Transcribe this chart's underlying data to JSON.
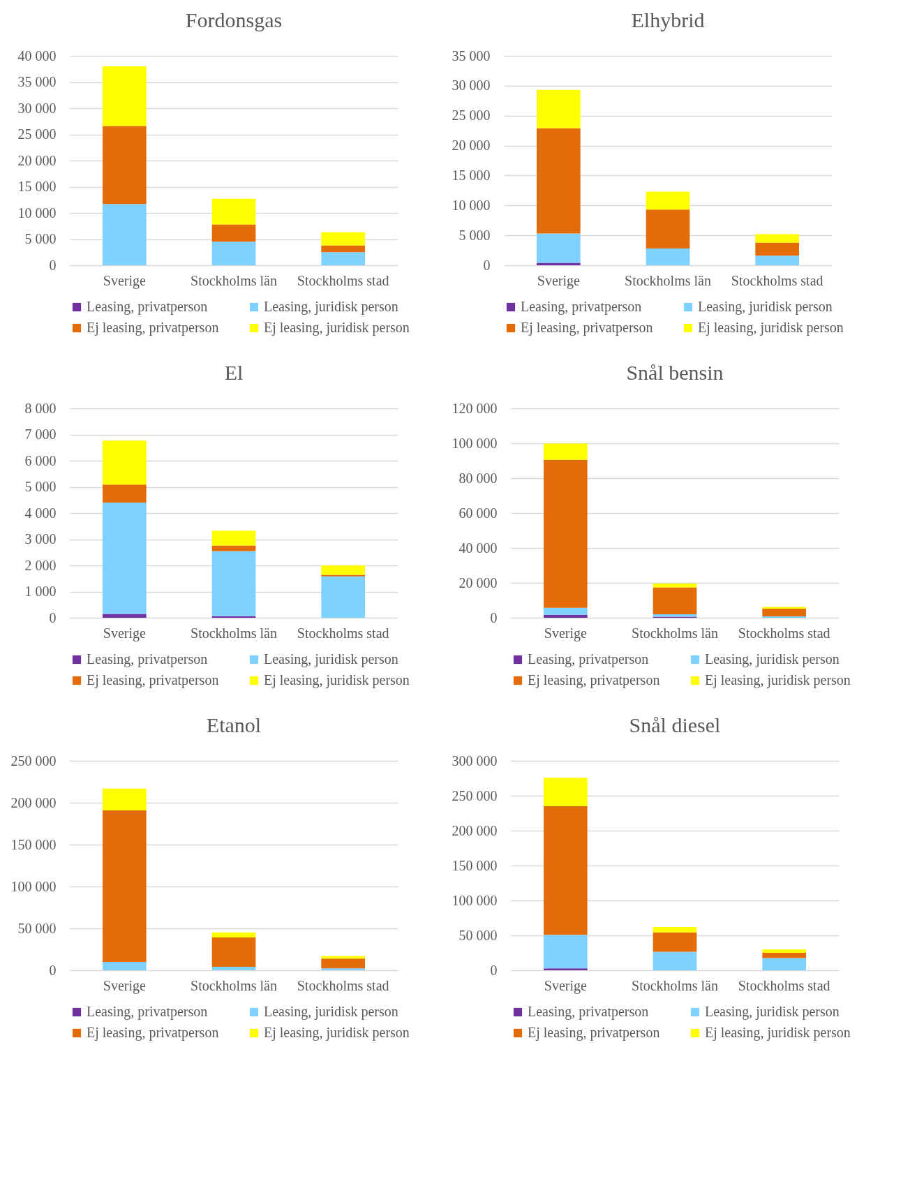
{
  "chart_data": [
    {
      "type": "bar",
      "title": "Fordonsgas",
      "stacked": true,
      "grid": "y",
      "legend": "bottom",
      "categories": [
        "Sverige",
        "Stockholms län",
        "Stockholms stad"
      ],
      "ylim": [
        0,
        40000
      ],
      "yticks": [
        0,
        {
          "value": 5000,
          "label": "5 000"
        },
        {
          "value": 10000,
          "label": "10 000"
        },
        {
          "value": 15000,
          "label": "15 000"
        },
        {
          "value": 20000,
          "label": "20 000"
        },
        {
          "value": 25000,
          "label": "25 000"
        },
        {
          "value": 30000,
          "label": "30 000"
        },
        {
          "value": 35000,
          "label": "35 000"
        },
        {
          "value": 40000,
          "label": "40 000"
        }
      ],
      "series": [
        {
          "name": "Leasing, privatperson",
          "color": "#7030a0",
          "values": [
            0,
            0,
            0
          ]
        },
        {
          "name": "Leasing, juridisk person",
          "color": "#7fd1ff",
          "values": [
            11700,
            4500,
            2500
          ]
        },
        {
          "name": "Ej leasing, privatperson",
          "color": "#e36c09",
          "values": [
            14900,
            3300,
            1300
          ]
        },
        {
          "name": "Ej leasing, juridisk person",
          "color": "#ffff00",
          "values": [
            11400,
            4900,
            2500
          ]
        }
      ]
    },
    {
      "type": "bar",
      "title": "Elhybrid",
      "stacked": true,
      "grid": "y",
      "legend": "bottom",
      "categories": [
        "Sverige",
        "Stockholms län",
        "Stockholms stad"
      ],
      "ylim": [
        0,
        35000
      ],
      "yticks": [
        0,
        {
          "value": 5000,
          "label": "5 000"
        },
        {
          "value": 10000,
          "label": "10 000"
        },
        {
          "value": 15000,
          "label": "15 000"
        },
        {
          "value": 20000,
          "label": "20 000"
        },
        {
          "value": 25000,
          "label": "25 000"
        },
        {
          "value": 30000,
          "label": "30 000"
        },
        {
          "value": 35000,
          "label": "35 000"
        }
      ],
      "series": [
        {
          "name": "Leasing, privatperson",
          "color": "#7030a0",
          "values": [
            400,
            0,
            0
          ]
        },
        {
          "name": "Leasing, juridisk person",
          "color": "#7fd1ff",
          "values": [
            4900,
            2800,
            1600
          ]
        },
        {
          "name": "Ej leasing, privatperson",
          "color": "#e36c09",
          "values": [
            17600,
            6500,
            2200
          ]
        },
        {
          "name": "Ej leasing, juridisk person",
          "color": "#ffff00",
          "values": [
            6400,
            3000,
            1400
          ]
        }
      ]
    },
    {
      "type": "bar",
      "title": "El",
      "stacked": true,
      "grid": "y",
      "legend": "bottom",
      "categories": [
        "Sverige",
        "Stockholms län",
        "Stockholms stad"
      ],
      "ylim": [
        0,
        8000
      ],
      "yticks": [
        0,
        {
          "value": 1000,
          "label": "1 000"
        },
        {
          "value": 2000,
          "label": "2 000"
        },
        {
          "value": 3000,
          "label": "3 000"
        },
        {
          "value": 4000,
          "label": "4 000"
        },
        {
          "value": 5000,
          "label": "5 000"
        },
        {
          "value": 6000,
          "label": "6 000"
        },
        {
          "value": 7000,
          "label": "7 000"
        },
        {
          "value": 8000,
          "label": "8 000"
        }
      ],
      "series": [
        {
          "name": "Leasing, privatperson",
          "color": "#7030a0",
          "values": [
            150,
            60,
            0
          ]
        },
        {
          "name": "Leasing, juridisk person",
          "color": "#7fd1ff",
          "values": [
            4250,
            2490,
            1580
          ]
        },
        {
          "name": "Ej leasing, privatperson",
          "color": "#e36c09",
          "values": [
            690,
            210,
            60
          ]
        },
        {
          "name": "Ej leasing, juridisk person",
          "color": "#ffff00",
          "values": [
            1680,
            570,
            360
          ]
        }
      ]
    },
    {
      "type": "bar",
      "title": "Snål bensin",
      "stacked": true,
      "grid": "y",
      "legend": "bottom",
      "categories": [
        "Sverige",
        "Stockholms län",
        "Stockholms stad"
      ],
      "ylim": [
        0,
        120000
      ],
      "yticks": [
        0,
        {
          "value": 20000,
          "label": "20 000"
        },
        {
          "value": 40000,
          "label": "40 000"
        },
        {
          "value": 60000,
          "label": "60 000"
        },
        {
          "value": 80000,
          "label": "80 000"
        },
        {
          "value": 100000,
          "label": "100 000"
        },
        {
          "value": 120000,
          "label": "120 000"
        }
      ],
      "series": [
        {
          "name": "Leasing, privatperson",
          "color": "#7030a0",
          "values": [
            1700,
            600,
            0
          ]
        },
        {
          "name": "Leasing, juridisk person",
          "color": "#7fd1ff",
          "values": [
            4000,
            1400,
            800
          ]
        },
        {
          "name": "Ej leasing, privatperson",
          "color": "#e36c09",
          "values": [
            84800,
            15400,
            4400
          ]
        },
        {
          "name": "Ej leasing, juridisk person",
          "color": "#ffff00",
          "values": [
            9300,
            2200,
            1000
          ]
        }
      ]
    },
    {
      "type": "bar",
      "title": "Etanol",
      "stacked": true,
      "grid": "y",
      "legend": "bottom",
      "categories": [
        "Sverige",
        "Stockholms län",
        "Stockholms stad"
      ],
      "ylim": [
        0,
        250000
      ],
      "yticks": [
        0,
        {
          "value": 50000,
          "label": "50 000"
        },
        {
          "value": 100000,
          "label": "100 000"
        },
        {
          "value": 150000,
          "label": "150 000"
        },
        {
          "value": 200000,
          "label": "200 000"
        },
        {
          "value": 250000,
          "label": "250 000"
        }
      ],
      "series": [
        {
          "name": "Leasing, privatperson",
          "color": "#7030a0",
          "values": [
            0,
            0,
            0
          ]
        },
        {
          "name": "Leasing, juridisk person",
          "color": "#7fd1ff",
          "values": [
            10000,
            4200,
            2200
          ]
        },
        {
          "name": "Ej leasing, privatperson",
          "color": "#e36c09",
          "values": [
            180800,
            35000,
            11700
          ]
        },
        {
          "name": "Ej leasing, juridisk person",
          "color": "#ffff00",
          "values": [
            26000,
            6000,
            3000
          ]
        }
      ]
    },
    {
      "type": "bar",
      "title": "Snål diesel",
      "stacked": true,
      "grid": "y",
      "legend": "bottom",
      "categories": [
        "Sverige",
        "Stockholms län",
        "Stockholms stad"
      ],
      "ylim": [
        0,
        300000
      ],
      "yticks": [
        0,
        {
          "value": 50000,
          "label": "50 000"
        },
        {
          "value": 100000,
          "label": "100 000"
        },
        {
          "value": 150000,
          "label": "150 000"
        },
        {
          "value": 200000,
          "label": "200 000"
        },
        {
          "value": 250000,
          "label": "250 000"
        },
        {
          "value": 300000,
          "label": "300 000"
        }
      ],
      "series": [
        {
          "name": "Leasing, privatperson",
          "color": "#7030a0",
          "values": [
            2800,
            0,
            0
          ]
        },
        {
          "name": "Leasing, juridisk person",
          "color": "#7fd1ff",
          "values": [
            48000,
            26400,
            17400
          ]
        },
        {
          "name": "Ej leasing, privatperson",
          "color": "#e36c09",
          "values": [
            184100,
            27800,
            7500
          ]
        },
        {
          "name": "Ej leasing, juridisk person",
          "color": "#ffff00",
          "values": [
            40900,
            7900,
            4800
          ]
        }
      ]
    }
  ]
}
